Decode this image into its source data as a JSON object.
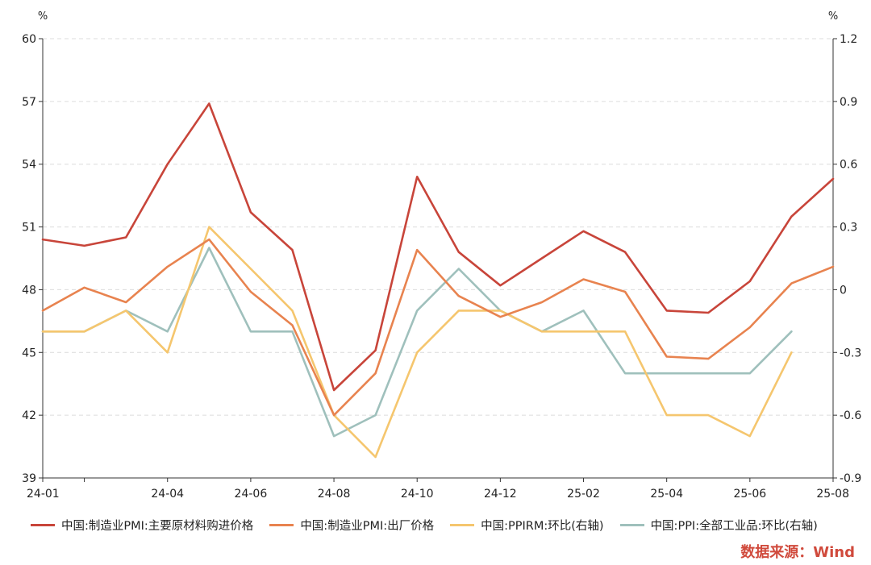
{
  "chart_data": {
    "type": "line",
    "left_unit": "%",
    "right_unit": "%",
    "x": [
      "24-01",
      "24-02",
      "24-03",
      "24-04",
      "24-05",
      "24-06",
      "24-07",
      "24-08",
      "24-09",
      "24-10",
      "24-11",
      "24-12",
      "25-01",
      "25-02",
      "25-03",
      "25-04",
      "25-05",
      "25-06",
      "25-07",
      "25-08"
    ],
    "x_tick_labels": {
      "0": "24-01",
      "3": "24-04",
      "5": "24-06",
      "7": "24-08",
      "9": "24-10",
      "11": "24-12",
      "13": "25-02",
      "15": "25-04",
      "17": "25-06",
      "19": "25-08"
    },
    "left_axis": {
      "min": 39,
      "max": 60,
      "ticks": [
        39,
        42,
        45,
        48,
        51,
        54,
        57,
        60
      ]
    },
    "right_axis": {
      "min": -0.9,
      "max": 1.2,
      "ticks": [
        -0.9,
        -0.6,
        -0.3,
        0,
        0.3,
        0.6,
        0.9,
        1.2
      ],
      "tick_labels": [
        "-0.9",
        "-0.6",
        "-0.3",
        "0",
        "0.3",
        "0.6",
        "0.9",
        "1.2"
      ]
    },
    "grid": "horizontal dashed",
    "legend_position": "bottom",
    "series": [
      {
        "name": "中国:制造业PMI:主要原材料购进价格",
        "axis": "left",
        "color": "#c8453a",
        "values": [
          50.4,
          50.1,
          50.5,
          54.0,
          56.9,
          51.7,
          49.9,
          43.2,
          45.1,
          53.4,
          49.8,
          48.2,
          49.5,
          50.8,
          49.8,
          47.0,
          46.9,
          48.4,
          51.5,
          53.3
        ]
      },
      {
        "name": "中国:制造业PMI:出厂价格",
        "axis": "left",
        "color": "#e8834f",
        "values": [
          47.0,
          48.1,
          47.4,
          49.1,
          50.4,
          47.9,
          46.3,
          42.0,
          44.0,
          49.9,
          47.7,
          46.7,
          47.4,
          48.5,
          47.9,
          44.8,
          44.7,
          46.2,
          48.3,
          49.1
        ]
      },
      {
        "name": "中国:PPIRM:环比(右轴)",
        "axis": "right",
        "color": "#f5c66e",
        "values": [
          -0.2,
          -0.2,
          -0.1,
          -0.3,
          0.3,
          0.1,
          -0.1,
          -0.6,
          -0.8,
          -0.3,
          -0.1,
          -0.1,
          -0.2,
          -0.2,
          -0.2,
          -0.6,
          -0.6,
          -0.7,
          -0.3,
          null
        ]
      },
      {
        "name": "中国:PPI:全部工业品:环比(右轴)",
        "axis": "right",
        "color": "#9fc0bc",
        "values": [
          -0.2,
          -0.2,
          -0.1,
          -0.2,
          0.2,
          -0.2,
          -0.2,
          -0.7,
          -0.6,
          -0.1,
          0.1,
          -0.1,
          -0.2,
          -0.1,
          -0.4,
          -0.4,
          -0.4,
          -0.4,
          -0.2,
          null
        ]
      }
    ]
  },
  "source": "数据来源：Wind"
}
